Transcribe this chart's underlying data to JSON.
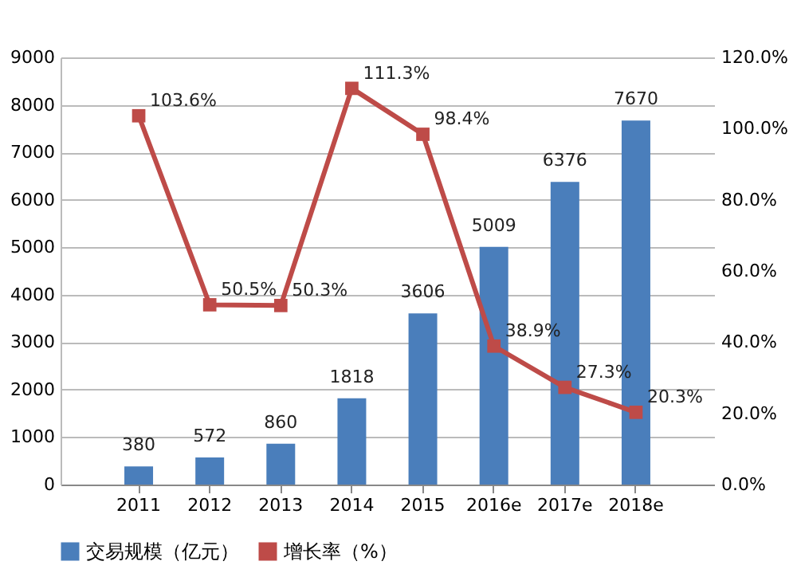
{
  "chart_data": {
    "type": "bar",
    "categories": [
      "2011",
      "2012",
      "2013",
      "2014",
      "2015",
      "2016e",
      "2017e",
      "2018e"
    ],
    "series": [
      {
        "name": "交易规模（亿元）",
        "color": "#4a7ebb",
        "values": [
          380,
          572,
          860,
          1818,
          3606,
          5009,
          6376,
          7670
        ],
        "value_labels": [
          "380",
          "572",
          "860",
          "1818",
          "3606",
          "5009",
          "6376",
          "7670"
        ]
      },
      {
        "name": "增长率（%）",
        "type": "line",
        "axis": "y2",
        "color": "#be4b48",
        "values": [
          103.6,
          50.5,
          50.3,
          111.3,
          98.4,
          38.9,
          27.3,
          20.3
        ],
        "value_labels": [
          "103.6%",
          "50.5%",
          "50.3%",
          "111.3%",
          "98.4%",
          "38.9%",
          "27.3%",
          "20.3%"
        ]
      }
    ],
    "ylim": [
      0,
      9000
    ],
    "yticks": [
      0,
      1000,
      2000,
      3000,
      4000,
      5000,
      6000,
      7000,
      8000,
      9000
    ],
    "y2lim": [
      0,
      120
    ],
    "y2ticks": [
      {
        "value": 0,
        "label": "0.0%"
      },
      {
        "value": 20,
        "label": "20.0%"
      },
      {
        "value": 40,
        "label": "40.0%"
      },
      {
        "value": 60,
        "label": "60.0%"
      },
      {
        "value": 80,
        "label": "80.0%"
      },
      {
        "value": 100,
        "label": "100.0%"
      },
      {
        "value": 120,
        "label": "120.0%"
      }
    ],
    "grid": "y",
    "legend": "bottom",
    "marker": "square",
    "line_style": "solid"
  }
}
